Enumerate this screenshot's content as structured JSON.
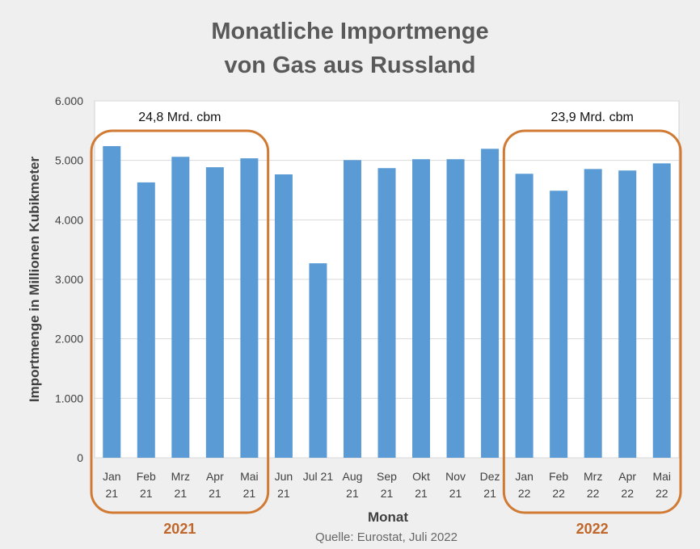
{
  "chart_data": {
    "type": "bar",
    "title": [
      "Monatliche Importmenge",
      "von Gas aus Russland"
    ],
    "xlabel": "Monat",
    "ylabel": "Importmenge in Millionen Kubikmeter",
    "ylim": [
      0,
      6000
    ],
    "yticks": [
      0,
      1000,
      2000,
      3000,
      4000,
      5000,
      6000
    ],
    "ytick_labels": [
      "0",
      "1.000",
      "2.000",
      "3.000",
      "4.000",
      "5.000",
      "6.000"
    ],
    "grid": true,
    "categories": [
      [
        "Jan",
        "21"
      ],
      [
        "Feb",
        "21"
      ],
      [
        "Mrz",
        "21"
      ],
      [
        "Apr",
        "21"
      ],
      [
        "Mai",
        "21"
      ],
      [
        "Jun",
        "21"
      ],
      [
        "Jul 21",
        ""
      ],
      [
        "Aug",
        "21"
      ],
      [
        "Sep",
        "21"
      ],
      [
        "Okt",
        "21"
      ],
      [
        "Nov",
        "21"
      ],
      [
        "Dez",
        "21"
      ],
      [
        "Jan",
        "22"
      ],
      [
        "Feb",
        "22"
      ],
      [
        "Mrz",
        "22"
      ],
      [
        "Apr",
        "22"
      ],
      [
        "Mai",
        "22"
      ]
    ],
    "values": [
      5240,
      4630,
      5060,
      4885,
      5035,
      4765,
      3270,
      5005,
      4870,
      5020,
      5020,
      5195,
      4775,
      4490,
      4855,
      4830,
      4950
    ],
    "bar_color": "#5b9bd5",
    "highlight_color": "#d07a33",
    "annotations": [
      {
        "label": "24,8 Mrd. cbm",
        "year": "2021",
        "from": 0,
        "to": 4
      },
      {
        "label": "23,9 Mrd. cbm",
        "year": "2022",
        "from": 12,
        "to": 16
      }
    ],
    "source": "Quelle: Eurostat, Juli 2022"
  }
}
